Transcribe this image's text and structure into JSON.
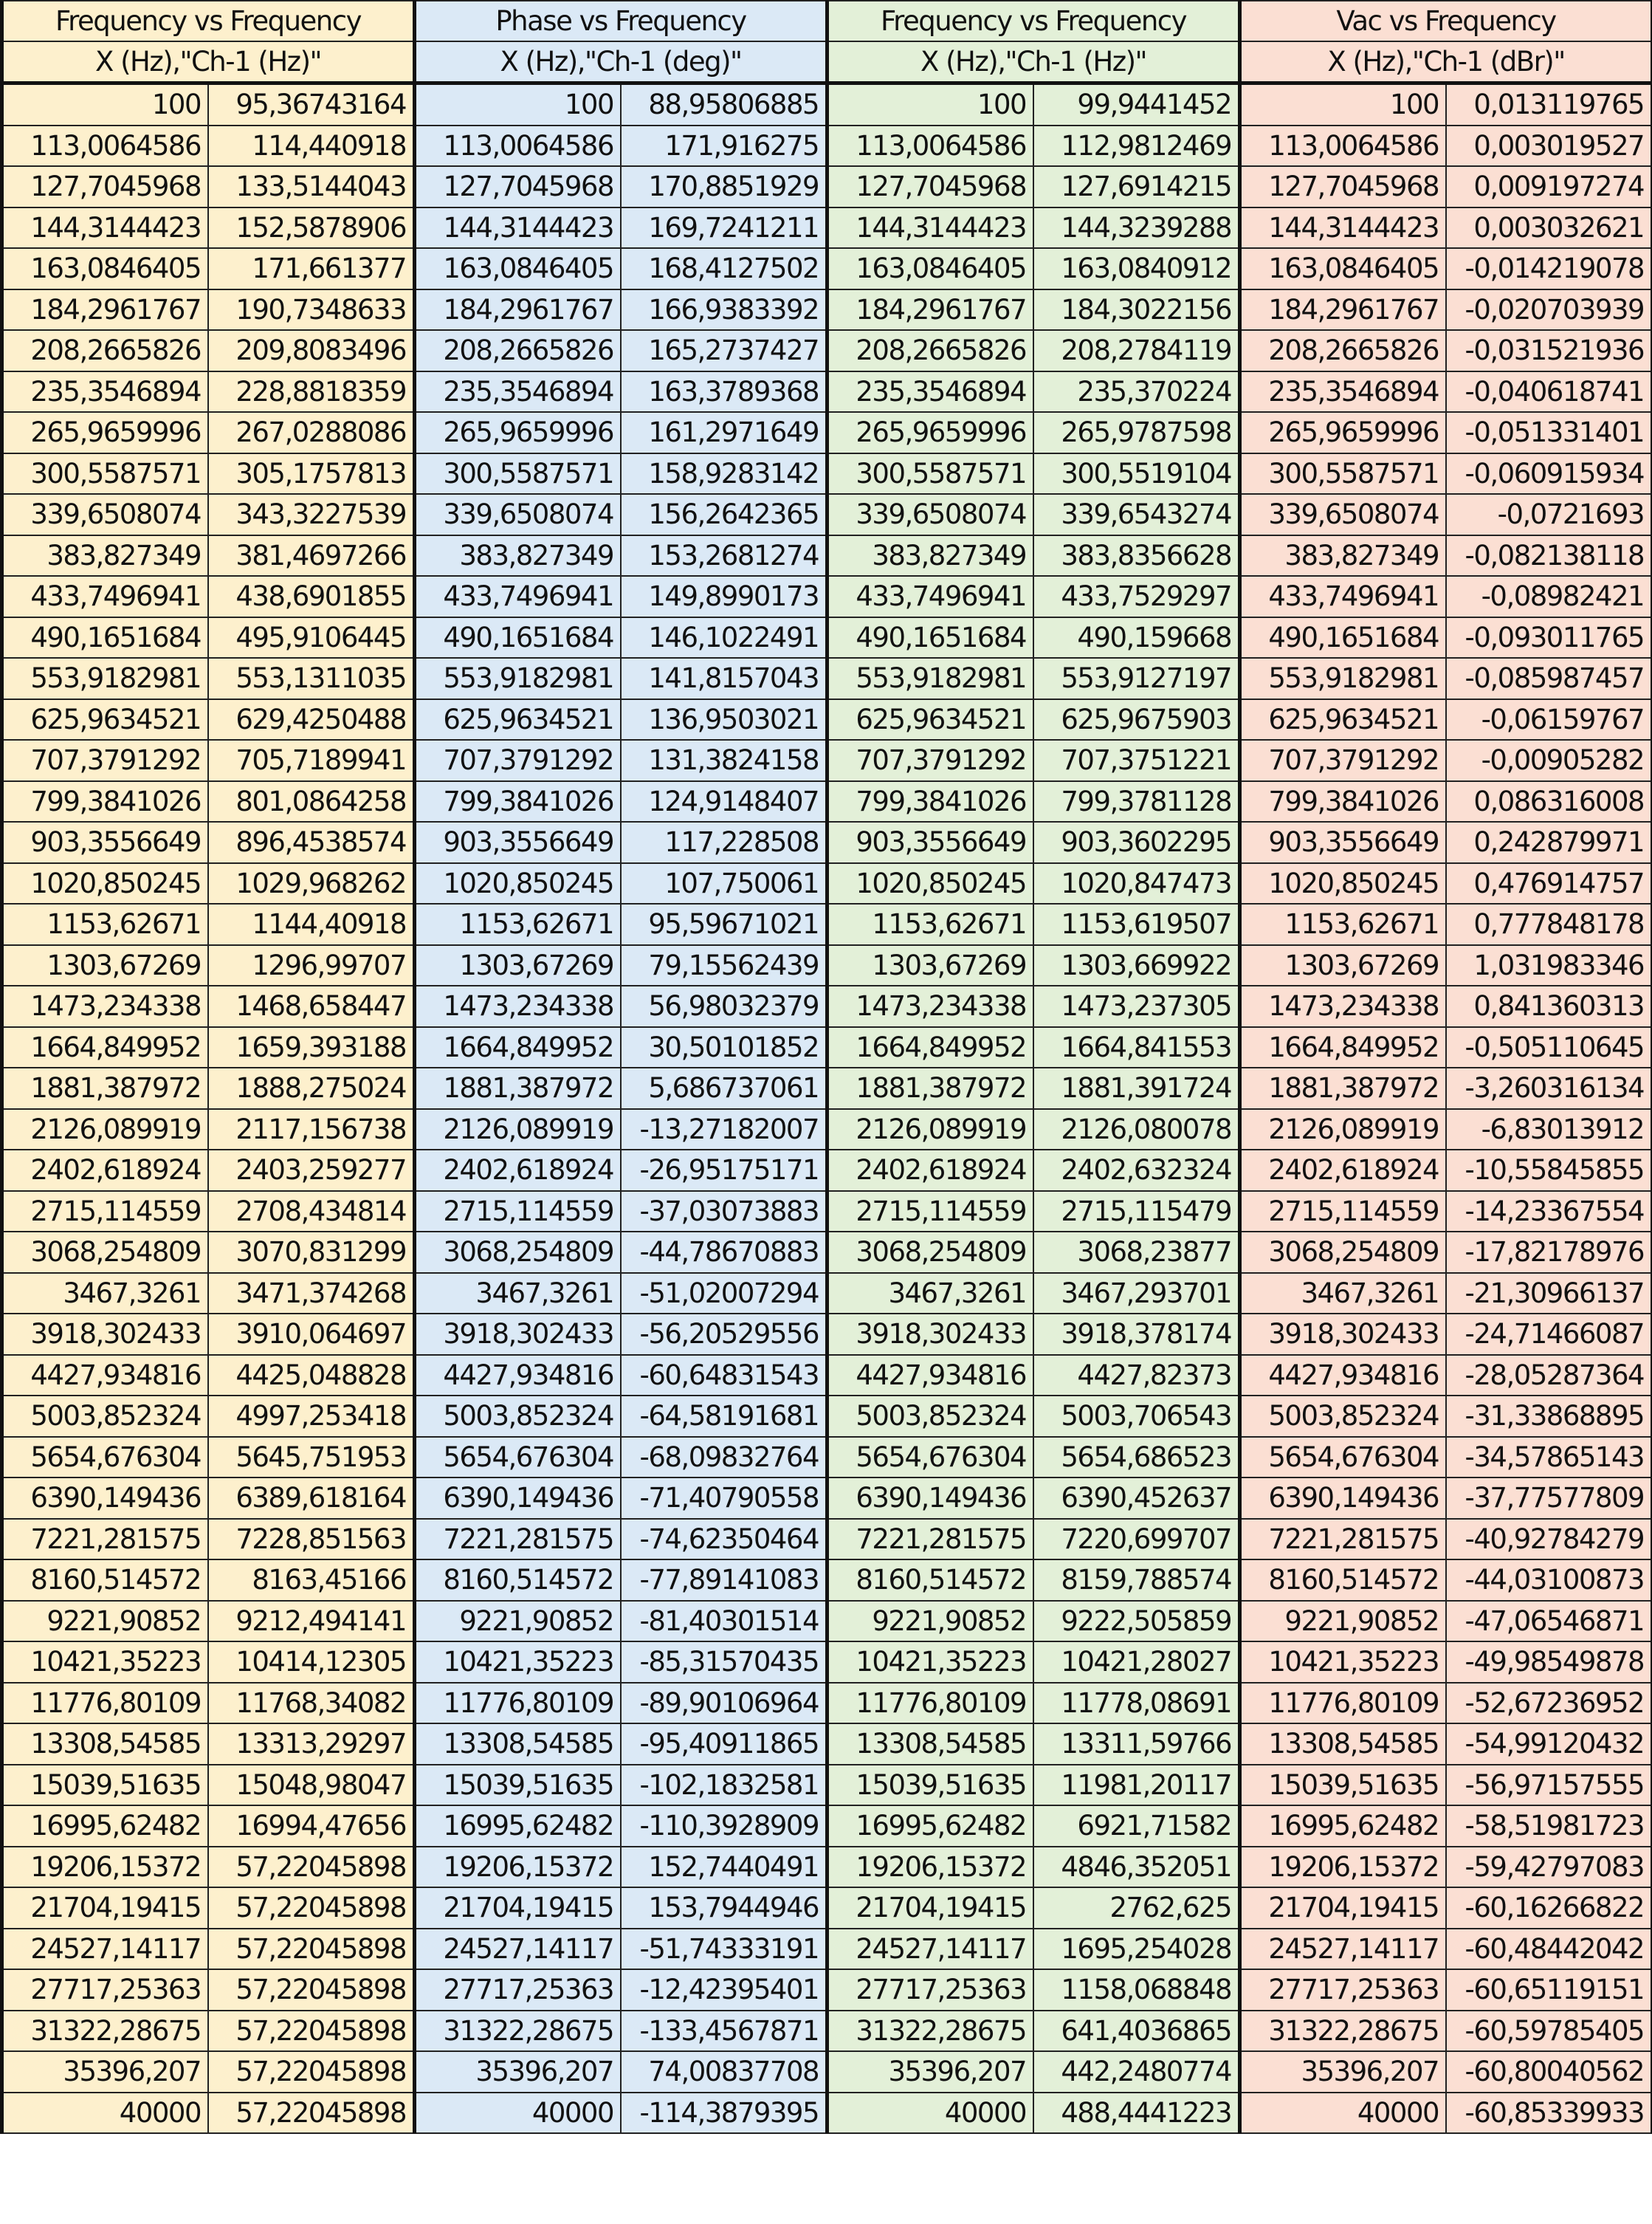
{
  "groups": [
    {
      "title": "Frequency vs Frequency",
      "subtitle": "X (Hz),\"Ch-1 (Hz)\"",
      "color": "#fdf0cd",
      "rows": [
        [
          "100",
          "95,36743164"
        ],
        [
          "113,0064586",
          "114,440918"
        ],
        [
          "127,7045968",
          "133,5144043"
        ],
        [
          "144,3144423",
          "152,5878906"
        ],
        [
          "163,0846405",
          "171,661377"
        ],
        [
          "184,2961767",
          "190,7348633"
        ],
        [
          "208,2665826",
          "209,8083496"
        ],
        [
          "235,3546894",
          "228,8818359"
        ],
        [
          "265,9659996",
          "267,0288086"
        ],
        [
          "300,5587571",
          "305,1757813"
        ],
        [
          "339,6508074",
          "343,3227539"
        ],
        [
          "383,827349",
          "381,4697266"
        ],
        [
          "433,7496941",
          "438,6901855"
        ],
        [
          "490,1651684",
          "495,9106445"
        ],
        [
          "553,9182981",
          "553,1311035"
        ],
        [
          "625,9634521",
          "629,4250488"
        ],
        [
          "707,3791292",
          "705,7189941"
        ],
        [
          "799,3841026",
          "801,0864258"
        ],
        [
          "903,3556649",
          "896,4538574"
        ],
        [
          "1020,850245",
          "1029,968262"
        ],
        [
          "1153,62671",
          "1144,40918"
        ],
        [
          "1303,67269",
          "1296,99707"
        ],
        [
          "1473,234338",
          "1468,658447"
        ],
        [
          "1664,849952",
          "1659,393188"
        ],
        [
          "1881,387972",
          "1888,275024"
        ],
        [
          "2126,089919",
          "2117,156738"
        ],
        [
          "2402,618924",
          "2403,259277"
        ],
        [
          "2715,114559",
          "2708,434814"
        ],
        [
          "3068,254809",
          "3070,831299"
        ],
        [
          "3467,3261",
          "3471,374268"
        ],
        [
          "3918,302433",
          "3910,064697"
        ],
        [
          "4427,934816",
          "4425,048828"
        ],
        [
          "5003,852324",
          "4997,253418"
        ],
        [
          "5654,676304",
          "5645,751953"
        ],
        [
          "6390,149436",
          "6389,618164"
        ],
        [
          "7221,281575",
          "7228,851563"
        ],
        [
          "8160,514572",
          "8163,45166"
        ],
        [
          "9221,90852",
          "9212,494141"
        ],
        [
          "10421,35223",
          "10414,12305"
        ],
        [
          "11776,80109",
          "11768,34082"
        ],
        [
          "13308,54585",
          "13313,29297"
        ],
        [
          "15039,51635",
          "15048,98047"
        ],
        [
          "16995,62482",
          "16994,47656"
        ],
        [
          "19206,15372",
          "57,22045898"
        ],
        [
          "21704,19415",
          "57,22045898"
        ],
        [
          "24527,14117",
          "57,22045898"
        ],
        [
          "27717,25363",
          "57,22045898"
        ],
        [
          "31322,28675",
          "57,22045898"
        ],
        [
          "35396,207",
          "57,22045898"
        ],
        [
          "40000",
          "57,22045898"
        ]
      ]
    },
    {
      "title": "Phase vs Frequency",
      "subtitle": "X (Hz),\"Ch-1 (deg)\"",
      "color": "#dbe9f6",
      "rows": [
        [
          "100",
          "88,95806885"
        ],
        [
          "113,0064586",
          "171,916275"
        ],
        [
          "127,7045968",
          "170,8851929"
        ],
        [
          "144,3144423",
          "169,7241211"
        ],
        [
          "163,0846405",
          "168,4127502"
        ],
        [
          "184,2961767",
          "166,9383392"
        ],
        [
          "208,2665826",
          "165,2737427"
        ],
        [
          "235,3546894",
          "163,3789368"
        ],
        [
          "265,9659996",
          "161,2971649"
        ],
        [
          "300,5587571",
          "158,9283142"
        ],
        [
          "339,6508074",
          "156,2642365"
        ],
        [
          "383,827349",
          "153,2681274"
        ],
        [
          "433,7496941",
          "149,8990173"
        ],
        [
          "490,1651684",
          "146,1022491"
        ],
        [
          "553,9182981",
          "141,8157043"
        ],
        [
          "625,9634521",
          "136,9503021"
        ],
        [
          "707,3791292",
          "131,3824158"
        ],
        [
          "799,3841026",
          "124,9148407"
        ],
        [
          "903,3556649",
          "117,228508"
        ],
        [
          "1020,850245",
          "107,750061"
        ],
        [
          "1153,62671",
          "95,59671021"
        ],
        [
          "1303,67269",
          "79,15562439"
        ],
        [
          "1473,234338",
          "56,98032379"
        ],
        [
          "1664,849952",
          "30,50101852"
        ],
        [
          "1881,387972",
          "5,686737061"
        ],
        [
          "2126,089919",
          "-13,27182007"
        ],
        [
          "2402,618924",
          "-26,95175171"
        ],
        [
          "2715,114559",
          "-37,03073883"
        ],
        [
          "3068,254809",
          "-44,78670883"
        ],
        [
          "3467,3261",
          "-51,02007294"
        ],
        [
          "3918,302433",
          "-56,20529556"
        ],
        [
          "4427,934816",
          "-60,64831543"
        ],
        [
          "5003,852324",
          "-64,58191681"
        ],
        [
          "5654,676304",
          "-68,09832764"
        ],
        [
          "6390,149436",
          "-71,40790558"
        ],
        [
          "7221,281575",
          "-74,62350464"
        ],
        [
          "8160,514572",
          "-77,89141083"
        ],
        [
          "9221,90852",
          "-81,40301514"
        ],
        [
          "10421,35223",
          "-85,31570435"
        ],
        [
          "11776,80109",
          "-89,90106964"
        ],
        [
          "13308,54585",
          "-95,40911865"
        ],
        [
          "15039,51635",
          "-102,1832581"
        ],
        [
          "16995,62482",
          "-110,3928909"
        ],
        [
          "19206,15372",
          "152,7440491"
        ],
        [
          "21704,19415",
          "153,7944946"
        ],
        [
          "24527,14117",
          "-51,74333191"
        ],
        [
          "27717,25363",
          "-12,42395401"
        ],
        [
          "31322,28675",
          "-133,4567871"
        ],
        [
          "35396,207",
          "74,00837708"
        ],
        [
          "40000",
          "-114,3879395"
        ]
      ]
    },
    {
      "title": "Frequency vs Frequency",
      "subtitle": "X (Hz),\"Ch-1 (Hz)\"",
      "color": "#e3f0d8",
      "rows": [
        [
          "100",
          "99,9441452"
        ],
        [
          "113,0064586",
          "112,9812469"
        ],
        [
          "127,7045968",
          "127,6914215"
        ],
        [
          "144,3144423",
          "144,3239288"
        ],
        [
          "163,0846405",
          "163,0840912"
        ],
        [
          "184,2961767",
          "184,3022156"
        ],
        [
          "208,2665826",
          "208,2784119"
        ],
        [
          "235,3546894",
          "235,370224"
        ],
        [
          "265,9659996",
          "265,9787598"
        ],
        [
          "300,5587571",
          "300,5519104"
        ],
        [
          "339,6508074",
          "339,6543274"
        ],
        [
          "383,827349",
          "383,8356628"
        ],
        [
          "433,7496941",
          "433,7529297"
        ],
        [
          "490,1651684",
          "490,159668"
        ],
        [
          "553,9182981",
          "553,9127197"
        ],
        [
          "625,9634521",
          "625,9675903"
        ],
        [
          "707,3791292",
          "707,3751221"
        ],
        [
          "799,3841026",
          "799,3781128"
        ],
        [
          "903,3556649",
          "903,3602295"
        ],
        [
          "1020,850245",
          "1020,847473"
        ],
        [
          "1153,62671",
          "1153,619507"
        ],
        [
          "1303,67269",
          "1303,669922"
        ],
        [
          "1473,234338",
          "1473,237305"
        ],
        [
          "1664,849952",
          "1664,841553"
        ],
        [
          "1881,387972",
          "1881,391724"
        ],
        [
          "2126,089919",
          "2126,080078"
        ],
        [
          "2402,618924",
          "2402,632324"
        ],
        [
          "2715,114559",
          "2715,115479"
        ],
        [
          "3068,254809",
          "3068,23877"
        ],
        [
          "3467,3261",
          "3467,293701"
        ],
        [
          "3918,302433",
          "3918,378174"
        ],
        [
          "4427,934816",
          "4427,82373"
        ],
        [
          "5003,852324",
          "5003,706543"
        ],
        [
          "5654,676304",
          "5654,686523"
        ],
        [
          "6390,149436",
          "6390,452637"
        ],
        [
          "7221,281575",
          "7220,699707"
        ],
        [
          "8160,514572",
          "8159,788574"
        ],
        [
          "9221,90852",
          "9222,505859"
        ],
        [
          "10421,35223",
          "10421,28027"
        ],
        [
          "11776,80109",
          "11778,08691"
        ],
        [
          "13308,54585",
          "13311,59766"
        ],
        [
          "15039,51635",
          "11981,20117"
        ],
        [
          "16995,62482",
          "6921,71582"
        ],
        [
          "19206,15372",
          "4846,352051"
        ],
        [
          "21704,19415",
          "2762,625"
        ],
        [
          "24527,14117",
          "1695,254028"
        ],
        [
          "27717,25363",
          "1158,068848"
        ],
        [
          "31322,28675",
          "641,4036865"
        ],
        [
          "35396,207",
          "442,2480774"
        ],
        [
          "40000",
          "488,4441223"
        ]
      ]
    },
    {
      "title": "Vac vs Frequency",
      "subtitle": "X (Hz),\"Ch-1 (dBr)\"",
      "color": "#fbdfd3",
      "rows": [
        [
          "100",
          "0,013119765"
        ],
        [
          "113,0064586",
          "0,003019527"
        ],
        [
          "127,7045968",
          "0,009197274"
        ],
        [
          "144,3144423",
          "0,003032621"
        ],
        [
          "163,0846405",
          "-0,014219078"
        ],
        [
          "184,2961767",
          "-0,020703939"
        ],
        [
          "208,2665826",
          "-0,031521936"
        ],
        [
          "235,3546894",
          "-0,040618741"
        ],
        [
          "265,9659996",
          "-0,051331401"
        ],
        [
          "300,5587571",
          "-0,060915934"
        ],
        [
          "339,6508074",
          "-0,0721693"
        ],
        [
          "383,827349",
          "-0,082138118"
        ],
        [
          "433,7496941",
          "-0,08982421"
        ],
        [
          "490,1651684",
          "-0,093011765"
        ],
        [
          "553,9182981",
          "-0,085987457"
        ],
        [
          "625,9634521",
          "-0,06159767"
        ],
        [
          "707,3791292",
          "-0,00905282"
        ],
        [
          "799,3841026",
          "0,086316008"
        ],
        [
          "903,3556649",
          "0,242879971"
        ],
        [
          "1020,850245",
          "0,476914757"
        ],
        [
          "1153,62671",
          "0,777848178"
        ],
        [
          "1303,67269",
          "1,031983346"
        ],
        [
          "1473,234338",
          "0,841360313"
        ],
        [
          "1664,849952",
          "-0,505110645"
        ],
        [
          "1881,387972",
          "-3,260316134"
        ],
        [
          "2126,089919",
          "-6,83013912"
        ],
        [
          "2402,618924",
          "-10,55845855"
        ],
        [
          "2715,114559",
          "-14,23367554"
        ],
        [
          "3068,254809",
          "-17,82178976"
        ],
        [
          "3467,3261",
          "-21,30966137"
        ],
        [
          "3918,302433",
          "-24,71466087"
        ],
        [
          "4427,934816",
          "-28,05287364"
        ],
        [
          "5003,852324",
          "-31,33868895"
        ],
        [
          "5654,676304",
          "-34,57865143"
        ],
        [
          "6390,149436",
          "-37,77577809"
        ],
        [
          "7221,281575",
          "-40,92784279"
        ],
        [
          "8160,514572",
          "-44,03100873"
        ],
        [
          "9221,90852",
          "-47,06546871"
        ],
        [
          "10421,35223",
          "-49,98549878"
        ],
        [
          "11776,80109",
          "-52,67236952"
        ],
        [
          "13308,54585",
          "-54,99120432"
        ],
        [
          "15039,51635",
          "-56,97157555"
        ],
        [
          "16995,62482",
          "-58,51981723"
        ],
        [
          "19206,15372",
          "-59,42797083"
        ],
        [
          "21704,19415",
          "-60,16266822"
        ],
        [
          "24527,14117",
          "-60,48442042"
        ],
        [
          "27717,25363",
          "-60,65119151"
        ],
        [
          "31322,28675",
          "-60,59785405"
        ],
        [
          "35396,207",
          "-60,80040562"
        ],
        [
          "40000",
          "-60,85339933"
        ]
      ]
    }
  ]
}
